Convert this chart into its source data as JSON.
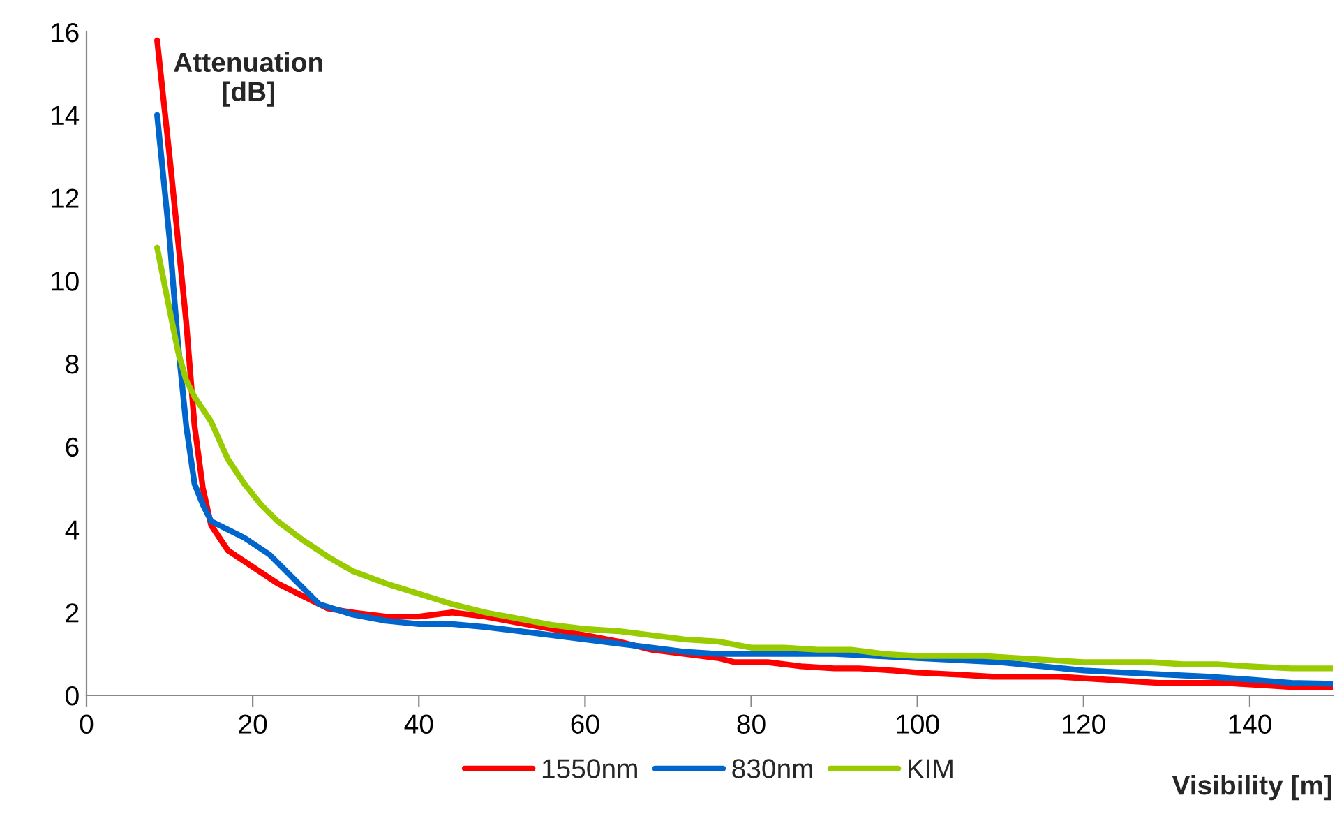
{
  "chart_data": {
    "type": "line",
    "xlabel": "Visibility [m]",
    "ylabel": "Attenuation\n[dB]",
    "xlim": [
      0,
      150
    ],
    "xticks": [
      0,
      20,
      40,
      60,
      80,
      100,
      120,
      140
    ],
    "ylim": [
      0,
      16
    ],
    "yticks": [
      0,
      2,
      4,
      6,
      8,
      10,
      12,
      14,
      16
    ],
    "grid": false,
    "legend": "bottom",
    "marker": "none",
    "line_style": "solid",
    "series": [
      {
        "name": "1550nm",
        "color": "#ff0000",
        "x": [
          8.5,
          10,
          11,
          12,
          13,
          14,
          15,
          16,
          17,
          20,
          23,
          27,
          29,
          32,
          36,
          40,
          44,
          48,
          52,
          56,
          60,
          64,
          68,
          72,
          76,
          78,
          82,
          86,
          90,
          93,
          97,
          100,
          105,
          109,
          117,
          121,
          125,
          129,
          137,
          141,
          145,
          150
        ],
        "values": [
          15.8,
          13,
          11,
          9,
          6.5,
          5,
          4.1,
          3.8,
          3.5,
          3.1,
          2.7,
          2.3,
          2.1,
          2.0,
          1.9,
          1.9,
          2.0,
          1.9,
          1.75,
          1.6,
          1.45,
          1.3,
          1.1,
          1.0,
          0.9,
          0.8,
          0.8,
          0.7,
          0.65,
          0.65,
          0.6,
          0.55,
          0.5,
          0.45,
          0.45,
          0.4,
          0.35,
          0.3,
          0.3,
          0.25,
          0.2,
          0.2
        ]
      },
      {
        "name": "830nm",
        "color": "#0066cc",
        "x": [
          8.5,
          10,
          11,
          12,
          13,
          14,
          15,
          17,
          19,
          22,
          25,
          28,
          32,
          36,
          40,
          44,
          48,
          52,
          56,
          60,
          64,
          68,
          72,
          76,
          80,
          90,
          95,
          100,
          105,
          110,
          115,
          120,
          125,
          130,
          135,
          140,
          145,
          150
        ],
        "values": [
          14,
          11,
          8.5,
          6.5,
          5.1,
          4.6,
          4.2,
          4.0,
          3.8,
          3.4,
          2.8,
          2.2,
          1.95,
          1.8,
          1.72,
          1.72,
          1.65,
          1.55,
          1.45,
          1.35,
          1.25,
          1.15,
          1.05,
          1.0,
          1.0,
          1.0,
          0.95,
          0.9,
          0.85,
          0.8,
          0.7,
          0.6,
          0.55,
          0.5,
          0.45,
          0.38,
          0.3,
          0.28
        ]
      },
      {
        "name": "KIM",
        "color": "#99cc00",
        "x": [
          8.5,
          10,
          11,
          12,
          13,
          15,
          17,
          19,
          21,
          23,
          26,
          29,
          32,
          36,
          40,
          44,
          48,
          52,
          56,
          60,
          64,
          68,
          72,
          76,
          80,
          84,
          88,
          92,
          96,
          100,
          104,
          108,
          112,
          116,
          120,
          124,
          128,
          132,
          136,
          140,
          145,
          150
        ],
        "values": [
          10.8,
          9.3,
          8.3,
          7.6,
          7.2,
          6.6,
          5.7,
          5.1,
          4.6,
          4.2,
          3.75,
          3.35,
          3.0,
          2.7,
          2.45,
          2.2,
          2.0,
          1.85,
          1.7,
          1.6,
          1.55,
          1.45,
          1.35,
          1.3,
          1.15,
          1.15,
          1.1,
          1.1,
          1.0,
          0.95,
          0.95,
          0.95,
          0.9,
          0.85,
          0.8,
          0.8,
          0.8,
          0.75,
          0.75,
          0.7,
          0.65,
          0.65
        ]
      }
    ]
  }
}
